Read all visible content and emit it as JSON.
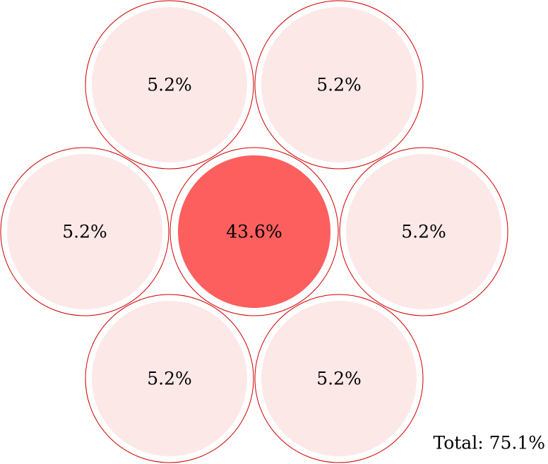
{
  "nodes": [
    {
      "label": "5.2%",
      "fill": "#fde8e8"
    },
    {
      "label": "5.2%",
      "fill": "#fde8e8"
    },
    {
      "label": "5.2%",
      "fill": "#fde8e8"
    },
    {
      "label": "43.6%",
      "fill": "#fd5f5f"
    },
    {
      "label": "5.2%",
      "fill": "#fde8e8"
    },
    {
      "label": "5.2%",
      "fill": "#fde8e8"
    },
    {
      "label": "5.2%",
      "fill": "#fde8e8"
    }
  ],
  "total": "Total: 75.1%",
  "stroke": "#d00000"
}
